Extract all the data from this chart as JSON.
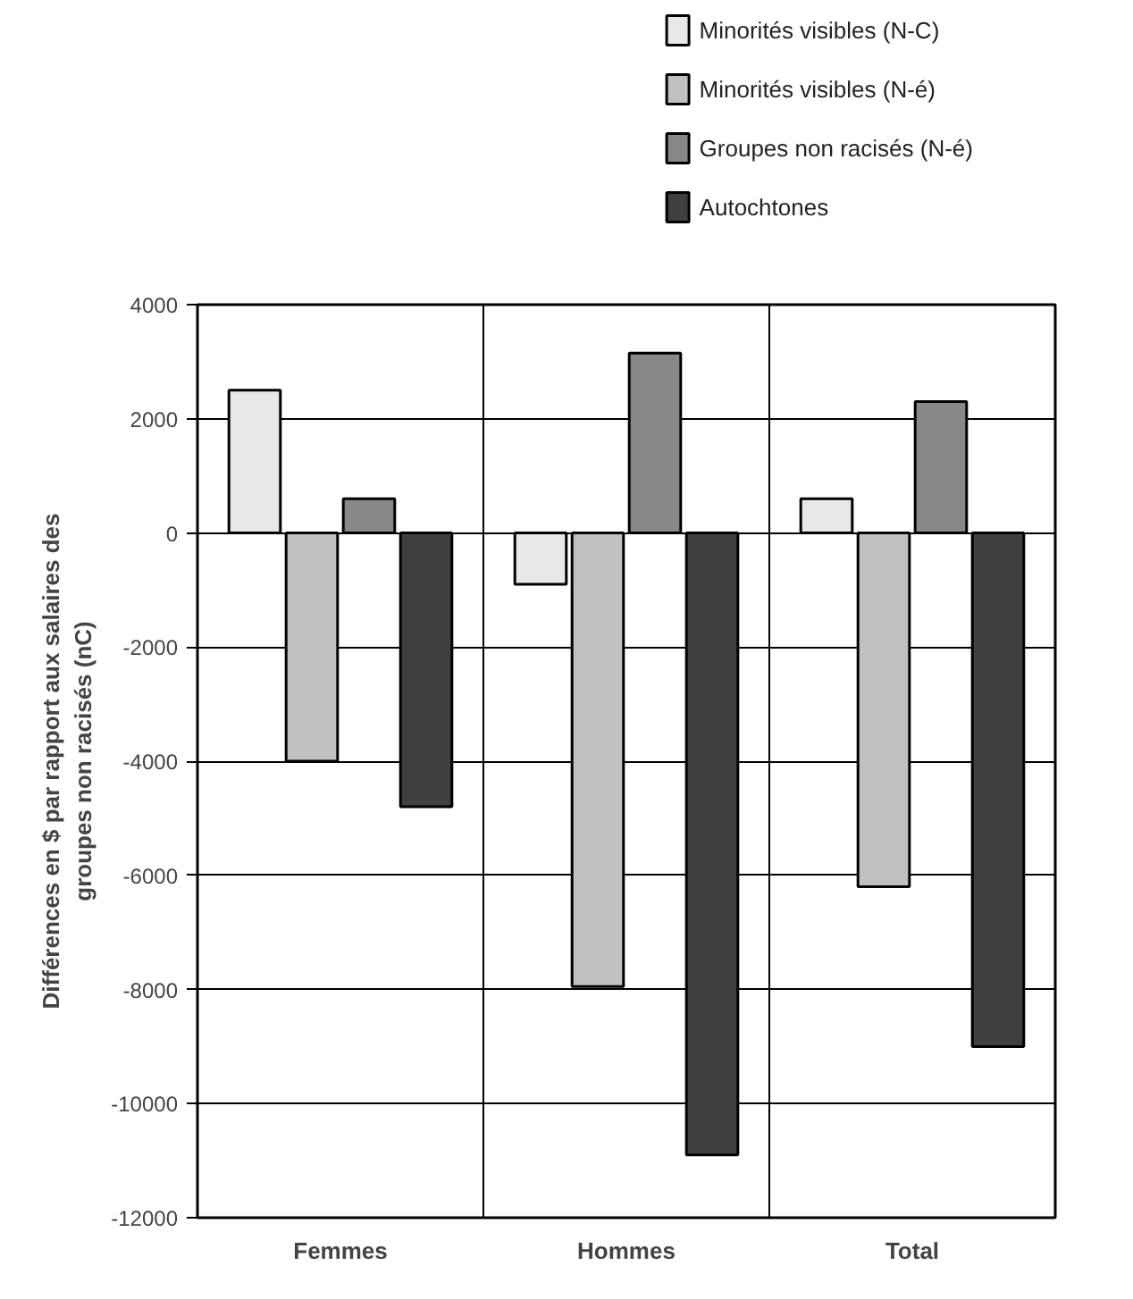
{
  "chart_data": {
    "type": "bar",
    "ylabel": "Différences en $ par rapport aux salaires des groupes non racisés (nC)",
    "categories": [
      "Femmes",
      "Hommes",
      "Total"
    ],
    "series": [
      {
        "name": "Minorités visibles (N-C)",
        "color": "#e8e8e8",
        "values": [
          2500,
          -900,
          600
        ]
      },
      {
        "name": "Minorités visibles (N-é)",
        "color": "#c0c0c0",
        "values": [
          -4000,
          -7950,
          -6200
        ]
      },
      {
        "name": "Groupes non racisés (N-é)",
        "color": "#888888",
        "values": [
          600,
          3150,
          2300
        ]
      },
      {
        "name": "Autochtones",
        "color": "#404040",
        "values": [
          -4800,
          -10900,
          -9000
        ]
      }
    ],
    "ylim": [
      -12000,
      4000
    ],
    "yticks": [
      -12000,
      -10000,
      -8000,
      -6000,
      -4000,
      -2000,
      0,
      2000,
      4000
    ],
    "grid": "y",
    "legend": "top right"
  }
}
